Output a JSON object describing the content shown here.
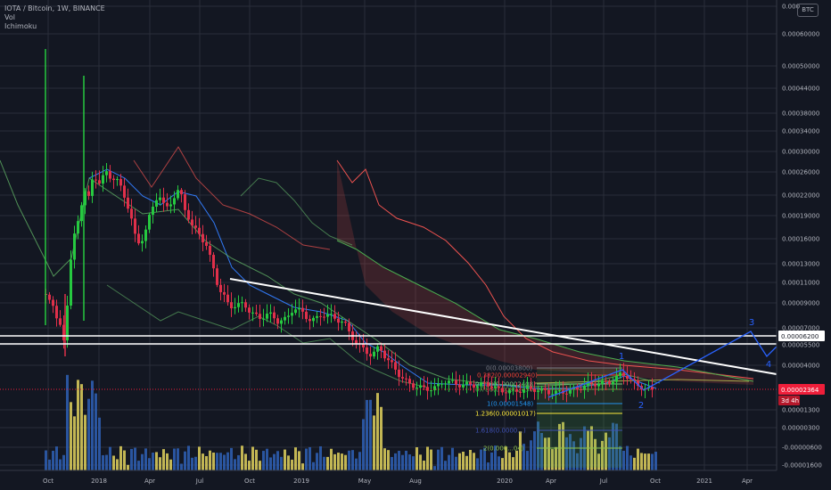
{
  "header": {
    "symbol_line": "IOTA / Bitcoin, 1W, BINANCE",
    "indicator_vol": "Vol",
    "indicator_ichimoku": "Ichimoku",
    "currency_button": "BTC"
  },
  "chart_data": {
    "type": "candlestick",
    "title": "IOTA / Bitcoin, 1W, BINANCE",
    "y_scale": "log",
    "grid": true,
    "price_axis_ticks": [
      "0.000",
      "0.00060000",
      "0.00050000",
      "0.00044000",
      "0.00038000",
      "0.00034000",
      "0.00030000",
      "0.00026000",
      "0.00022000",
      "0.00019000",
      "0.00016000",
      "0.00013000",
      "0.00011000",
      "0.00009000",
      "0.00007000",
      "0.00005500",
      "0.00004000",
      "0.00001300",
      "0.00000300",
      "-0.00000600",
      "-0.00001600"
    ],
    "time_axis_ticks": [
      "Oct",
      "2018",
      "Apr",
      "Jul",
      "Oct",
      "2019",
      "May",
      "Aug",
      "2020",
      "Apr",
      "Jul",
      "Oct",
      "2021",
      "Apr"
    ],
    "price_labels": [
      {
        "text": "0.00006200",
        "kind": "level"
      },
      {
        "text": "0.00002364",
        "kind": "last-price"
      },
      {
        "text": "3d 4h",
        "kind": "countdown"
      }
    ],
    "fib_levels": [
      {
        "text": "0(0.00003800)"
      },
      {
        "text": "0.382(0.00002940)"
      },
      {
        "text": "0.618(0.00002408)"
      },
      {
        "text": "0.786(0.00002030)"
      },
      {
        "text": "1(0.00001548)"
      },
      {
        "text": "1.236(0.00001017)"
      },
      {
        "text": "1.618(0.0000...)"
      },
      {
        "text": "2(0.000...04)"
      }
    ],
    "wave_labels": [
      "1",
      "2",
      "3",
      "4"
    ],
    "horizontal_level": 6.2e-05,
    "trendline": {
      "start": "Sep 2018",
      "end": "Dec 2020"
    },
    "colors": {
      "up": "#26c940",
      "down": "#e0304a",
      "vol_up": "#d6c85a",
      "vol_down": "#2d5cad",
      "kijun": "#3179f5",
      "senkou_a": "#4caf50",
      "senkou_b": "#ef5350",
      "chikou": "#66bb6a",
      "last_price": "#ef1e3a",
      "wave": "#2962ff"
    }
  }
}
